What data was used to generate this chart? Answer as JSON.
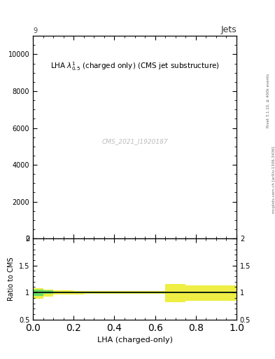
{
  "title": "LHA $\\lambda^{1}_{0.5}$ (charged only) (CMS jet substructure)",
  "watermark": "CMS_2021_I1920187",
  "top_left_label": "9",
  "top_right_label": "Jets",
  "right_label1": "Rivet 3.1.10, ≥ 400k events",
  "right_label2": "mcplots.cern.ch [arXiv:1306.3436]",
  "xlabel": "LHA (charged-only)",
  "ylabel_ratio": "Ratio to CMS",
  "xlim": [
    0,
    1
  ],
  "ylim_main": [
    0,
    11000
  ],
  "ylim_ratio": [
    0.5,
    2.0
  ],
  "yticks_main": [
    0,
    2000,
    4000,
    6000,
    8000,
    10000
  ],
  "background_color": "#ffffff",
  "ratio_line_y": 1.0,
  "green_color": "#66dd66",
  "yellow_color": "#eeee44",
  "line_color": "#000000",
  "yellow_band": {
    "edges": [
      0.0,
      0.05,
      0.1,
      0.15,
      0.2,
      0.25,
      0.3,
      0.35,
      0.4,
      0.45,
      0.5,
      0.55,
      0.6,
      0.65,
      0.7,
      0.75,
      0.8,
      0.85,
      0.9,
      0.95,
      1.0
    ],
    "lo": [
      0.88,
      0.93,
      0.96,
      0.965,
      0.967,
      0.97,
      0.97,
      0.97,
      0.97,
      0.97,
      0.97,
      0.97,
      0.97,
      0.82,
      0.82,
      0.84,
      0.84,
      0.84,
      0.84,
      0.84,
      0.84
    ],
    "hi": [
      1.08,
      1.06,
      1.04,
      1.035,
      1.033,
      1.03,
      1.03,
      1.03,
      1.03,
      1.03,
      1.03,
      1.03,
      1.03,
      1.16,
      1.16,
      1.13,
      1.13,
      1.13,
      1.13,
      1.13,
      1.13
    ]
  },
  "green_band": {
    "edges": [
      0.0,
      0.05,
      0.1,
      0.15,
      0.2,
      0.25,
      0.3,
      0.35,
      0.4,
      0.45,
      0.5,
      0.55,
      0.6,
      0.65,
      0.7,
      0.75,
      0.8,
      0.85,
      0.9,
      0.95,
      1.0
    ],
    "lo": [
      0.94,
      0.97,
      0.985,
      0.988,
      0.989,
      0.99,
      0.99,
      0.99,
      0.99,
      0.99,
      0.99,
      0.99,
      0.99,
      0.99,
      0.99,
      0.99,
      0.99,
      0.99,
      0.99,
      0.99,
      0.99
    ],
    "hi": [
      1.05,
      1.035,
      1.02,
      1.016,
      1.014,
      1.012,
      1.012,
      1.012,
      1.012,
      1.012,
      1.012,
      1.012,
      1.012,
      1.012,
      1.012,
      1.012,
      1.012,
      1.012,
      1.012,
      1.012,
      1.012
    ]
  }
}
